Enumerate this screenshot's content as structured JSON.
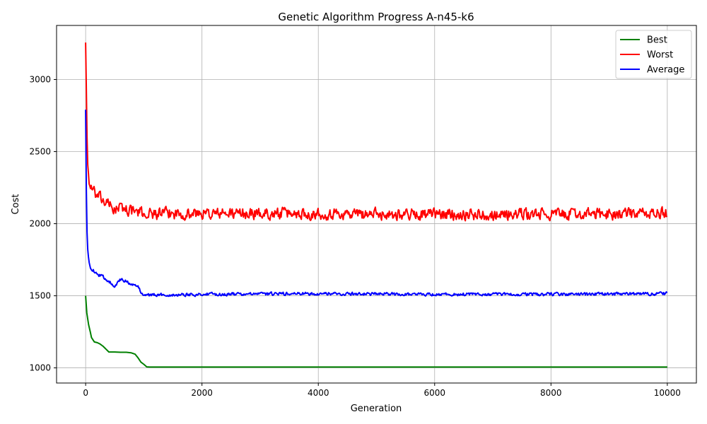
{
  "chart_data": {
    "type": "line",
    "title": "Genetic Algorithm Progress A-n45-k6",
    "xlabel": "Generation",
    "ylabel": "Cost",
    "xlim": [
      -500,
      10500
    ],
    "ylim": [
      895,
      3375
    ],
    "x_ticks": [
      0,
      2000,
      4000,
      6000,
      8000,
      10000
    ],
    "y_ticks": [
      1000,
      1500,
      2000,
      2500,
      3000
    ],
    "x_tick_labels": [
      "0",
      "2000",
      "4000",
      "6000",
      "8000",
      "10000"
    ],
    "y_tick_labels": [
      "1000",
      "1500",
      "2000",
      "2500",
      "3000"
    ],
    "grid": true,
    "legend_position": "top-right",
    "series": [
      {
        "name": "Best",
        "color": "#008000",
        "x": [
          0,
          20,
          50,
          80,
          100,
          150,
          200,
          250,
          300,
          350,
          400,
          500,
          600,
          700,
          780,
          850,
          900,
          950,
          1000,
          1050,
          1100,
          2000,
          4000,
          6000,
          8000,
          10000
        ],
        "y": [
          1500,
          1380,
          1300,
          1250,
          1210,
          1180,
          1175,
          1165,
          1150,
          1130,
          1110,
          1110,
          1108,
          1108,
          1105,
          1095,
          1070,
          1040,
          1025,
          1007,
          1006,
          1006,
          1006,
          1006,
          1006,
          1006
        ],
        "noise": 0
      },
      {
        "name": "Worst",
        "color": "#ff0000",
        "x": [
          0,
          10,
          20,
          30,
          50,
          80,
          100,
          150,
          200,
          300,
          400,
          500,
          600,
          800,
          1000,
          2000,
          4000,
          6000,
          8000,
          10000
        ],
        "y": [
          3260,
          3000,
          2700,
          2450,
          2320,
          2260,
          2240,
          2210,
          2190,
          2160,
          2130,
          2100,
          2110,
          2090,
          2070,
          2070,
          2070,
          2065,
          2065,
          2070
        ],
        "noise": 55
      },
      {
        "name": "Average",
        "color": "#0000ff",
        "x": [
          0,
          10,
          20,
          30,
          50,
          80,
          100,
          150,
          200,
          300,
          400,
          500,
          600,
          700,
          800,
          900,
          950,
          1000,
          1100,
          2000,
          4000,
          6000,
          8000,
          10000
        ],
        "y": [
          2790,
          2300,
          2000,
          1850,
          1760,
          1700,
          1690,
          1670,
          1650,
          1630,
          1600,
          1570,
          1610,
          1600,
          1580,
          1560,
          1530,
          1510,
          1505,
          1510,
          1515,
          1510,
          1510,
          1515
        ],
        "noise": 15
      }
    ]
  }
}
